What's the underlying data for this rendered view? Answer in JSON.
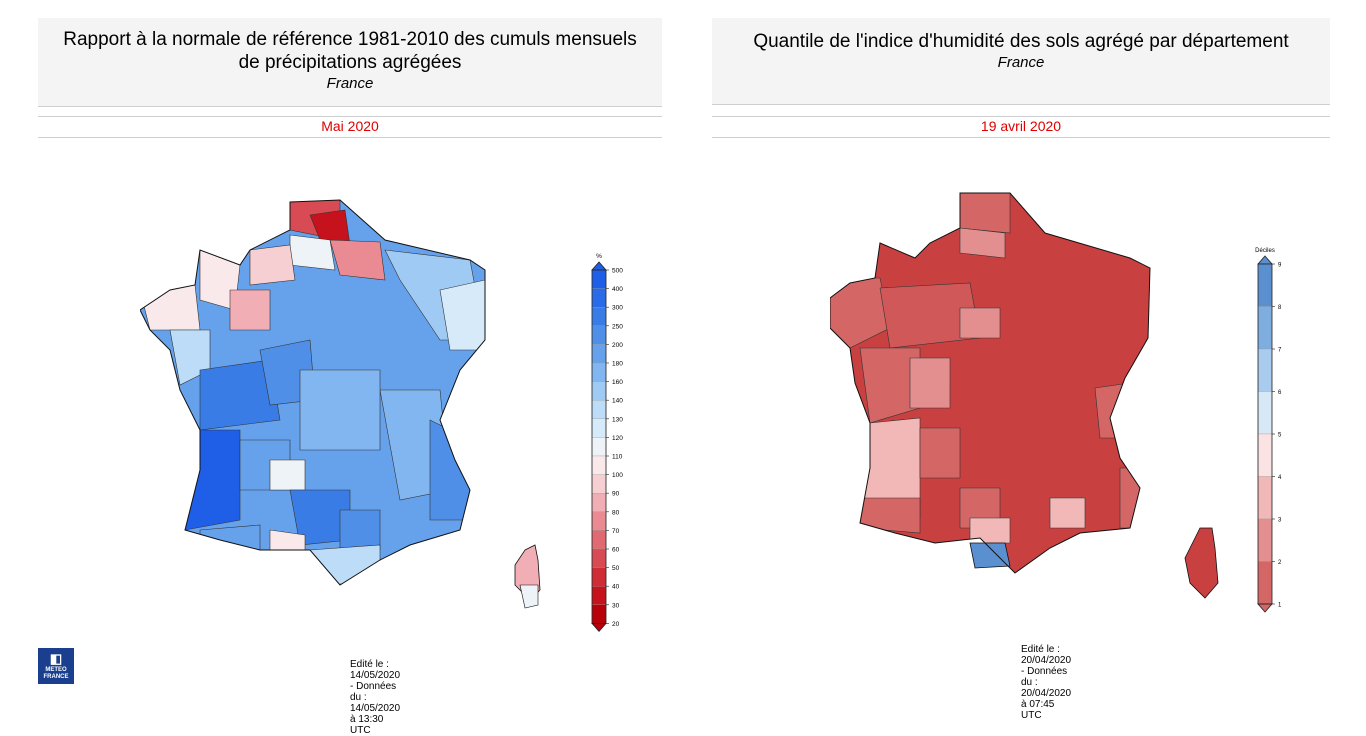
{
  "left_panel": {
    "title_line1": "Rapport à la normale de référence 1981-2010 des cumuls mensuels",
    "title_line2": "de précipitations agrégées",
    "subtitle": "France",
    "date": "Mai 2020",
    "legend_unit": "%",
    "legend_ticks": [
      "500",
      "400",
      "300",
      "250",
      "200",
      "180",
      "160",
      "140",
      "130",
      "120",
      "110",
      "100",
      "90",
      "80",
      "70",
      "60",
      "50",
      "40",
      "30",
      "20"
    ],
    "legend_colors": [
      "#1f5fe8",
      "#2a6be8",
      "#3a7ce6",
      "#4f8fe8",
      "#66a2ec",
      "#82b6f0",
      "#9fcaf3",
      "#bcdcf7",
      "#d6eafa",
      "#eef3f8",
      "#f9e9ea",
      "#f6cfd3",
      "#f1aeb4",
      "#ea8a92",
      "#e16a72",
      "#d84b54",
      "#cf2c35",
      "#c6121c",
      "#b8000b"
    ],
    "footer": "Edité le : 14/05/2020 - Données du : 14/05/2020 à 13:30 UTC",
    "logo_text_1": "METEO",
    "logo_text_2": "FRANCE"
  },
  "right_panel": {
    "title_line1": "Quantile de l'indice d'humidité des sols agrégé par département",
    "subtitle": "France",
    "date": "19 avril 2020",
    "legend_unit": "Déciles",
    "legend_ticks": [
      "9",
      "8",
      "7",
      "6",
      "5",
      "4",
      "3",
      "2",
      "1"
    ],
    "legend_colors": [
      "#5a8fd0",
      "#7eaee0",
      "#a8cbee",
      "#d7e8f7",
      "#fbe3e3",
      "#f2b8b8",
      "#e48f8f",
      "#d46666"
    ],
    "footer": "Edité le : 20/04/2020 - Données du : 20/04/2020 à 07:45 UTC"
  },
  "colors": {
    "date_red": "#e00000",
    "rain_high_blue": "#1f5fe8",
    "rain_low_red": "#c6121c",
    "soil_dry_red": "#c94040",
    "soil_wet_blue": "#5a8fd0"
  }
}
